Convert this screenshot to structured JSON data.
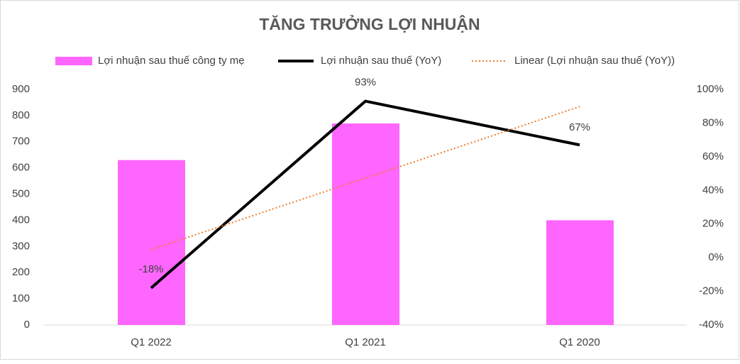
{
  "chart_data": {
    "type": "bar",
    "title": "TĂNG TRƯỞNG LỢI NHUẬN",
    "categories": [
      "Q1 2022",
      "Q1 2021",
      "Q1 2020"
    ],
    "series": [
      {
        "name": "Lợi nhuận sau thuế công ty mẹ",
        "type": "bar",
        "color": "#ff66ff",
        "values": [
          630,
          770,
          400
        ]
      },
      {
        "name": "Lợi nhuận sau thuế (YoY)",
        "type": "line",
        "axis": "y2",
        "color": "#000000",
        "values": [
          -18,
          93,
          67
        ],
        "value_labels": [
          "-18%",
          "93%",
          "67%"
        ]
      },
      {
        "name": "Linear (Lợi nhuận sau thuế (YoY))",
        "type": "line",
        "axis": "y2",
        "style": "dotted",
        "color": "#ed7d31",
        "values": [
          4.8,
          47.3,
          89.8
        ]
      }
    ],
    "ylim": [
      0,
      900
    ],
    "yticks": [
      0,
      100,
      200,
      300,
      400,
      500,
      600,
      700,
      800,
      900
    ],
    "y2lim": [
      -40,
      100
    ],
    "y2ticks": [
      {
        "value": -40,
        "label": "-40%"
      },
      {
        "value": -20,
        "label": "-20%"
      },
      {
        "value": 0,
        "label": "0%"
      },
      {
        "value": 20,
        "label": "20%"
      },
      {
        "value": 40,
        "label": "40%"
      },
      {
        "value": 60,
        "label": "60%"
      },
      {
        "value": 80,
        "label": "80%"
      },
      {
        "value": 100,
        "label": "100%"
      }
    ],
    "legend": "top",
    "grid": false
  }
}
